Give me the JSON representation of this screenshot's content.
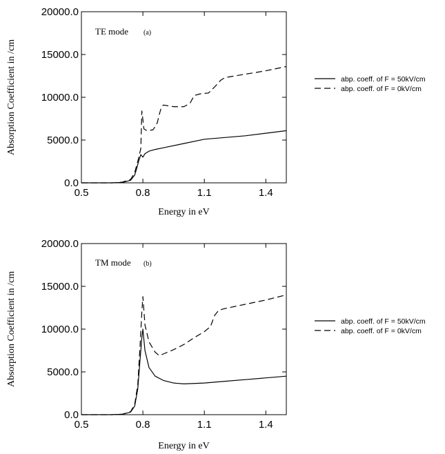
{
  "colors": {
    "ink": "#000000",
    "background": "#ffffff"
  },
  "chart_data": [
    {
      "type": "line",
      "panel_label": "TE mode",
      "panel_tag": "(a)",
      "xlabel": "Energy in eV",
      "ylabel": "Absorption Coefficient in /cm",
      "xlim": [
        0.5,
        1.5
      ],
      "ylim": [
        0,
        20000
      ],
      "xticks": [
        0.5,
        0.8,
        1.1,
        1.4
      ],
      "xtick_labels": [
        "0.5",
        "0.8",
        "1.1",
        "1.4"
      ],
      "yticks": [
        0,
        5000,
        10000,
        15000,
        20000
      ],
      "ytick_labels": [
        "0.0",
        "5000.0",
        "10000.0",
        "15000.0",
        "20000.0"
      ],
      "grid": false,
      "legend_position": "right",
      "series": [
        {
          "name": "abp. coeff. of F = 50kV/cm",
          "style": "solid",
          "x": [
            0.5,
            0.65,
            0.7,
            0.74,
            0.76,
            0.77,
            0.78,
            0.79,
            0.8,
            0.81,
            0.83,
            0.86,
            0.9,
            1.0,
            1.1,
            1.2,
            1.3,
            1.4,
            1.5
          ],
          "y": [
            0,
            0,
            50,
            300,
            900,
            1700,
            2600,
            3300,
            3000,
            3400,
            3700,
            3900,
            4100,
            4600,
            5100,
            5300,
            5500,
            5800,
            6100
          ]
        },
        {
          "name": "abp. coeff. of F = 0kV/cm",
          "style": "dashed",
          "x": [
            0.5,
            0.65,
            0.7,
            0.74,
            0.76,
            0.775,
            0.79,
            0.795,
            0.8,
            0.805,
            0.82,
            0.85,
            0.87,
            0.88,
            0.89,
            0.9,
            0.95,
            1.0,
            1.03,
            1.05,
            1.08,
            1.12,
            1.15,
            1.18,
            1.2,
            1.3,
            1.4,
            1.5
          ],
          "y": [
            0,
            0,
            80,
            400,
            1200,
            2500,
            4000,
            8400,
            7400,
            6300,
            6100,
            6200,
            7000,
            8000,
            8800,
            9100,
            8900,
            8900,
            9300,
            10200,
            10400,
            10500,
            11200,
            12000,
            12300,
            12700,
            13100,
            13600
          ]
        }
      ]
    },
    {
      "type": "line",
      "panel_label": "TM mode",
      "panel_tag": "(b)",
      "xlabel": "Energy in eV",
      "ylabel": "Absorption Coefficient in /cm",
      "xlim": [
        0.5,
        1.5
      ],
      "ylim": [
        0,
        20000
      ],
      "xticks": [
        0.5,
        0.8,
        1.1,
        1.4
      ],
      "xtick_labels": [
        "0.5",
        "0.8",
        "1.1",
        "1.4"
      ],
      "yticks": [
        0,
        5000,
        10000,
        15000,
        20000
      ],
      "ytick_labels": [
        "0.0",
        "5000.0",
        "10000.0",
        "15000.0",
        "20000.0"
      ],
      "grid": false,
      "legend_position": "right",
      "series": [
        {
          "name": "abp. coeff. of F = 50kV/cm",
          "style": "solid",
          "x": [
            0.5,
            0.65,
            0.7,
            0.74,
            0.76,
            0.775,
            0.785,
            0.795,
            0.8,
            0.81,
            0.83,
            0.86,
            0.9,
            0.95,
            1.0,
            1.1,
            1.2,
            1.3,
            1.4,
            1.5
          ],
          "y": [
            0,
            0,
            50,
            300,
            1000,
            3000,
            6000,
            9000,
            10000,
            7500,
            5500,
            4500,
            4000,
            3700,
            3600,
            3700,
            3900,
            4100,
            4300,
            4500
          ]
        },
        {
          "name": "abp. coeff. of F = 0kV/cm",
          "style": "dashed",
          "x": [
            0.5,
            0.65,
            0.7,
            0.74,
            0.76,
            0.775,
            0.785,
            0.795,
            0.8,
            0.81,
            0.83,
            0.86,
            0.88,
            0.9,
            0.95,
            1.0,
            1.05,
            1.1,
            1.13,
            1.15,
            1.17,
            1.2,
            1.3,
            1.4,
            1.5
          ],
          "y": [
            0,
            0,
            60,
            350,
            1200,
            3500,
            7500,
            12000,
            13800,
            10500,
            8500,
            7300,
            6900,
            7100,
            7600,
            8200,
            9000,
            9700,
            10300,
            11600,
            12200,
            12400,
            12900,
            13400,
            14000
          ]
        }
      ]
    }
  ]
}
